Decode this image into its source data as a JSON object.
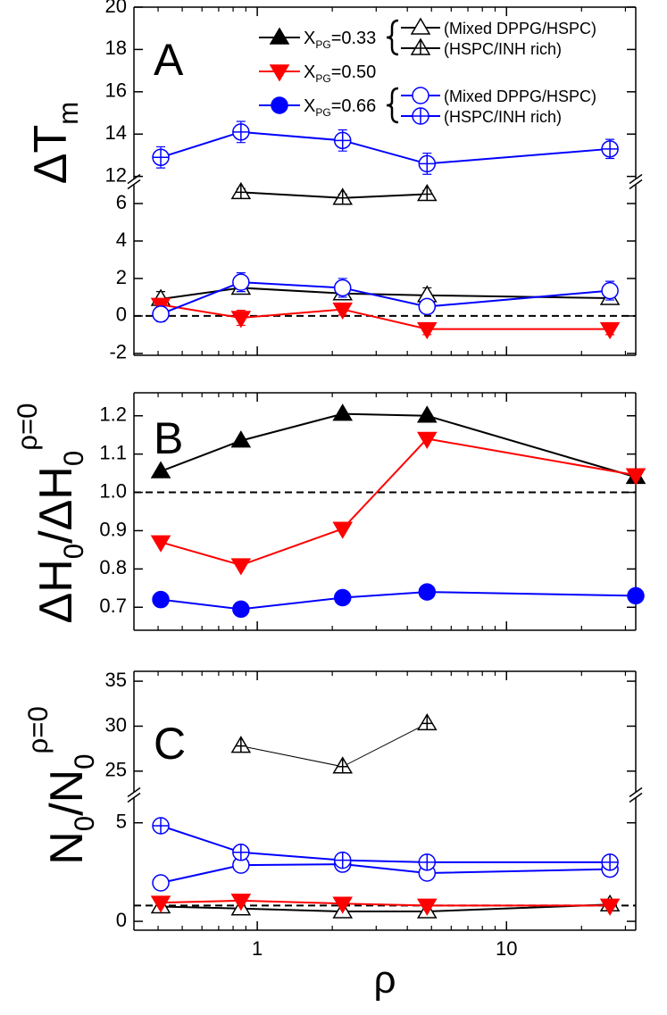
{
  "chart_data": [
    {
      "type": "line",
      "panel_label": "A",
      "ylabel": [
        {
          "text": "ΔT"
        },
        {
          "text": "m",
          "shift": "sub"
        }
      ],
      "xscale": "log",
      "xlim": [
        0.32,
        33
      ],
      "xticks": [
        1,
        10
      ],
      "xticks_minor": [
        0.4,
        0.5,
        0.6,
        0.7,
        0.8,
        0.9,
        2,
        3,
        4,
        5,
        6,
        7,
        8,
        9,
        20,
        30
      ],
      "show_xtick_labels": false,
      "y_segments": [
        {
          "ylim": [
            -2.1,
            7
          ],
          "yticks": [
            -2,
            0,
            2,
            4,
            6
          ]
        },
        {
          "ylim": [
            11.9,
            20
          ],
          "yticks": [
            12,
            14,
            16,
            18,
            20
          ]
        }
      ],
      "reference_line": 0,
      "groups": [
        {
          "name": "X",
          "name_sub": "PG",
          "name_value": "=0.33",
          "color": "#000000",
          "marker": "triangle-up",
          "series": [
            {
              "label": "(Mixed DPPG/HSPC)",
              "fill": "open",
              "x": [
                0.41,
                0.86,
                2.2,
                4.8,
                26
              ],
              "values": [
                0.9,
                1.5,
                1.2,
                1.1,
                0.95
              ],
              "errors": [
                0.4,
                0.3,
                0.3,
                0.4,
                0.3
              ]
            },
            {
              "label": "(HSPC/INH rich)",
              "fill": "crossed",
              "x": [
                0.86,
                2.2,
                4.8
              ],
              "values": [
                6.6,
                6.3,
                6.5
              ],
              "errors": [
                0.2,
                0.2,
                0.2
              ]
            }
          ]
        },
        {
          "name": "X",
          "name_sub": "PG",
          "name_value": "=0.50",
          "color": "#ff0000",
          "marker": "triangle-down",
          "series": [
            {
              "fill": "filled",
              "x": [
                0.41,
                0.86,
                2.2,
                4.8,
                26
              ],
              "values": [
                0.6,
                -0.1,
                0.35,
                -0.7,
                -0.7
              ],
              "errors": [
                0.3,
                0.4,
                0.3,
                0.3,
                0.3
              ]
            }
          ]
        },
        {
          "name": "X",
          "name_sub": "PG",
          "name_value": "=0.66",
          "color": "#0000ff",
          "marker": "circle",
          "series": [
            {
              "label": "(Mixed DPPG/HSPC)",
              "fill": "open",
              "x": [
                0.41,
                0.86,
                2.2,
                4.8,
                26
              ],
              "values": [
                0.1,
                1.8,
                1.5,
                0.5,
                1.35
              ],
              "errors": [
                0.4,
                0.5,
                0.5,
                0.3,
                0.5
              ]
            },
            {
              "label": "(HSPC/INH rich)",
              "fill": "crossed",
              "x": [
                0.41,
                0.86,
                2.2,
                4.8,
                26
              ],
              "values": [
                12.9,
                14.1,
                13.7,
                12.6,
                13.3
              ],
              "errors": [
                0.5,
                0.5,
                0.5,
                0.5,
                0.45
              ]
            }
          ]
        }
      ]
    },
    {
      "type": "line",
      "panel_label": "B",
      "ylabel": [
        {
          "text": "ΔH"
        },
        {
          "text": "0",
          "shift": "sub"
        },
        {
          "text": "/ΔH"
        },
        {
          "text": "0",
          "shift": "sub"
        },
        {
          "text": "ρ=0",
          "shift": "super"
        }
      ],
      "xscale": "log",
      "xlim": [
        0.32,
        33
      ],
      "xticks": [
        1,
        10
      ],
      "xticks_minor": [
        0.4,
        0.5,
        0.6,
        0.7,
        0.8,
        0.9,
        2,
        3,
        4,
        5,
        6,
        7,
        8,
        9,
        20,
        30
      ],
      "show_xtick_labels": false,
      "ylim": [
        0.64,
        1.26
      ],
      "yticks": [
        0.7,
        0.8,
        0.9,
        {
          "value": 1,
          "label": "1.0"
        },
        1.1,
        1.2
      ],
      "reference_line": 1,
      "groups": [
        {
          "color": "#000000",
          "marker": "triangle-up",
          "series": [
            {
              "fill": "filled",
              "x": [
                0.41,
                0.86,
                2.2,
                4.8,
                33
              ],
              "values": [
                1.055,
                1.135,
                1.205,
                1.2,
                1.04
              ]
            }
          ]
        },
        {
          "color": "#ff0000",
          "marker": "triangle-down",
          "series": [
            {
              "fill": "filled",
              "x": [
                0.41,
                0.86,
                2.2,
                4.8,
                33
              ],
              "values": [
                0.87,
                0.81,
                0.905,
                1.14,
                1.045
              ]
            }
          ]
        },
        {
          "color": "#0000ff",
          "marker": "circle",
          "series": [
            {
              "fill": "filled",
              "x": [
                0.41,
                0.86,
                2.2,
                4.8,
                33
              ],
              "values": [
                0.72,
                0.695,
                0.725,
                0.74,
                0.73
              ]
            }
          ]
        }
      ]
    },
    {
      "type": "line",
      "panel_label": "C",
      "ylabel": [
        {
          "text": "N"
        },
        {
          "text": "0",
          "shift": "sub"
        },
        {
          "text": "/N"
        },
        {
          "text": "0",
          "shift": "sub"
        },
        {
          "text": "ρ=0",
          "shift": "super"
        }
      ],
      "xlabel": "ρ",
      "xscale": "log",
      "xlim": [
        0.32,
        33
      ],
      "xticks": [
        1,
        10
      ],
      "xticks_minor": [
        0.4,
        0.5,
        0.6,
        0.7,
        0.8,
        0.9,
        2,
        3,
        4,
        5,
        6,
        7,
        8,
        9,
        20,
        30
      ],
      "show_xtick_labels": true,
      "y_segments": [
        {
          "ylim": [
            -0.45,
            6.3
          ],
          "yticks": [
            0,
            5
          ]
        },
        {
          "ylim": [
            22.6,
            36.1
          ],
          "yticks": [
            25,
            30,
            35
          ]
        }
      ],
      "reference_line": 0.8,
      "groups": [
        {
          "color": "#000000",
          "marker": "triangle-up",
          "series": [
            {
              "fill": "open",
              "x": [
                0.41,
                0.86,
                2.2,
                4.8,
                26
              ],
              "values": [
                0.75,
                0.65,
                0.5,
                0.5,
                0.85
              ]
            },
            {
              "fill": "crossed",
              "line_width": 1,
              "x": [
                0.86,
                2.2,
                4.8
              ],
              "values": [
                27.8,
                25.5,
                30.3
              ]
            }
          ]
        },
        {
          "color": "#ff0000",
          "marker": "triangle-down",
          "series": [
            {
              "fill": "filled",
              "x": [
                0.41,
                0.86,
                2.2,
                4.8,
                26
              ],
              "values": [
                0.95,
                1.05,
                0.9,
                0.8,
                0.8
              ]
            }
          ]
        },
        {
          "color": "#0000ff",
          "marker": "circle",
          "series": [
            {
              "fill": "open",
              "x": [
                0.41,
                0.86,
                2.2,
                4.8,
                26
              ],
              "values": [
                1.95,
                2.85,
                2.9,
                2.45,
                2.65
              ]
            },
            {
              "fill": "crossed",
              "x": [
                0.41,
                0.86,
                2.2,
                4.8,
                26
              ],
              "values": [
                4.85,
                3.5,
                3.1,
                3.0,
                3.0
              ]
            }
          ]
        }
      ]
    }
  ]
}
